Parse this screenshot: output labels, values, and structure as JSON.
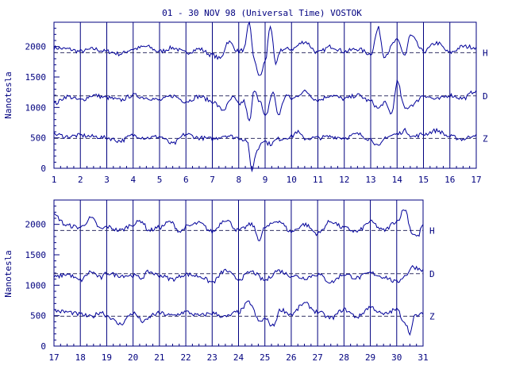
{
  "colors": {
    "ink": "#00007f",
    "trace": "#000099",
    "background": "#ffffff"
  },
  "chart_data": [
    {
      "type": "line",
      "title": "01 - 30 NOV 98 (Universal Time) VOSTOK",
      "ylabel": "Nanotesla",
      "xlim": [
        1,
        17
      ],
      "ylim": [
        0,
        2400
      ],
      "x_ticks": [
        "1",
        "2",
        "3",
        "4",
        "5",
        "6",
        "7",
        "8",
        "9",
        "10",
        "11",
        "12",
        "13",
        "14",
        "15",
        "16",
        "17"
      ],
      "y_ticks": [
        "0",
        "500",
        "1000",
        "1500",
        "2000"
      ],
      "grid": "vertical lines at each day",
      "baselines": [
        1900,
        1190,
        490
      ],
      "series": [
        {
          "name": "H",
          "points": [
            [
              1,
              1980
            ],
            [
              1.5,
              1960
            ],
            [
              2,
              1920
            ],
            [
              2.5,
              1960
            ],
            [
              3,
              1920
            ],
            [
              3.5,
              1880
            ],
            [
              4,
              1960
            ],
            [
              4.5,
              2000
            ],
            [
              5,
              1920
            ],
            [
              5.5,
              1980
            ],
            [
              6,
              1900
            ],
            [
              6.5,
              1960
            ],
            [
              7,
              1860
            ],
            [
              7.3,
              1800
            ],
            [
              7.6,
              2080
            ],
            [
              8,
              1920
            ],
            [
              8.2,
              1950
            ],
            [
              8.4,
              2380
            ],
            [
              8.6,
              1750
            ],
            [
              8.8,
              1500
            ],
            [
              9,
              1750
            ],
            [
              9.2,
              2350
            ],
            [
              9.4,
              1700
            ],
            [
              9.6,
              1950
            ],
            [
              10,
              1960
            ],
            [
              10.5,
              2080
            ],
            [
              11,
              1900
            ],
            [
              11.5,
              2000
            ],
            [
              12,
              1920
            ],
            [
              12.5,
              1960
            ],
            [
              13,
              1880
            ],
            [
              13.3,
              2300
            ],
            [
              13.5,
              1850
            ],
            [
              14,
              2100
            ],
            [
              14.3,
              1860
            ],
            [
              14.5,
              2180
            ],
            [
              15,
              1920
            ],
            [
              15.5,
              2060
            ],
            [
              16,
              1900
            ],
            [
              16.5,
              2000
            ],
            [
              17,
              1990
            ]
          ]
        },
        {
          "name": "D",
          "points": [
            [
              1,
              1060
            ],
            [
              1.5,
              1180
            ],
            [
              2,
              1120
            ],
            [
              2.5,
              1200
            ],
            [
              3,
              1160
            ],
            [
              3.5,
              1120
            ],
            [
              4,
              1200
            ],
            [
              4.5,
              1160
            ],
            [
              5,
              1120
            ],
            [
              5.5,
              1190
            ],
            [
              6,
              1100
            ],
            [
              6.5,
              1180
            ],
            [
              7,
              1100
            ],
            [
              7.4,
              960
            ],
            [
              7.8,
              1160
            ],
            [
              8,
              1050
            ],
            [
              8.2,
              1100
            ],
            [
              8.4,
              760
            ],
            [
              8.6,
              1300
            ],
            [
              8.8,
              1100
            ],
            [
              9,
              840
            ],
            [
              9.3,
              1250
            ],
            [
              9.5,
              880
            ],
            [
              9.8,
              1200
            ],
            [
              10,
              1140
            ],
            [
              10.5,
              1260
            ],
            [
              11,
              1120
            ],
            [
              11.5,
              1200
            ],
            [
              12,
              1140
            ],
            [
              12.5,
              1200
            ],
            [
              13,
              1100
            ],
            [
              13.3,
              980
            ],
            [
              13.5,
              1080
            ],
            [
              13.8,
              900
            ],
            [
              14,
              1420
            ],
            [
              14.3,
              980
            ],
            [
              14.6,
              1050
            ],
            [
              15,
              1200
            ],
            [
              15.5,
              1130
            ],
            [
              16,
              1200
            ],
            [
              16.5,
              1150
            ],
            [
              17,
              1280
            ]
          ]
        },
        {
          "name": "Z",
          "points": [
            [
              1,
              560
            ],
            [
              1.5,
              520
            ],
            [
              2,
              540
            ],
            [
              2.5,
              520
            ],
            [
              3,
              500
            ],
            [
              3.5,
              450
            ],
            [
              4,
              540
            ],
            [
              4.5,
              500
            ],
            [
              5,
              520
            ],
            [
              5.5,
              400
            ],
            [
              6,
              560
            ],
            [
              6.5,
              500
            ],
            [
              7,
              480
            ],
            [
              7.5,
              540
            ],
            [
              8,
              500
            ],
            [
              8.3,
              460
            ],
            [
              8.5,
              -20
            ],
            [
              8.7,
              300
            ],
            [
              8.9,
              460
            ],
            [
              9.2,
              400
            ],
            [
              9.5,
              480
            ],
            [
              10,
              520
            ],
            [
              10.2,
              600
            ],
            [
              10.5,
              490
            ],
            [
              11,
              500
            ],
            [
              11.5,
              520
            ],
            [
              12,
              500
            ],
            [
              12.5,
              560
            ],
            [
              13,
              480
            ],
            [
              13.3,
              350
            ],
            [
              13.6,
              520
            ],
            [
              14,
              560
            ],
            [
              14.3,
              620
            ],
            [
              14.6,
              520
            ],
            [
              15,
              560
            ],
            [
              15.5,
              620
            ],
            [
              16,
              520
            ],
            [
              16.5,
              480
            ],
            [
              17,
              560
            ]
          ]
        }
      ],
      "labels": [
        "H",
        "D",
        "Z"
      ]
    },
    {
      "type": "line",
      "ylabel": "Nanotesla",
      "xlim": [
        17,
        31
      ],
      "ylim": [
        0,
        2400
      ],
      "x_ticks": [
        "17",
        "18",
        "19",
        "20",
        "21",
        "22",
        "23",
        "24",
        "25",
        "26",
        "27",
        "28",
        "29",
        "30",
        "31"
      ],
      "y_ticks": [
        "0",
        "500",
        "1000",
        "1500",
        "2000"
      ],
      "grid": "vertical lines at each day",
      "baselines": [
        1900,
        1190,
        490
      ],
      "series": [
        {
          "name": "H",
          "points": [
            [
              17,
              2150
            ],
            [
              17.5,
              1980
            ],
            [
              18,
              1950
            ],
            [
              18.4,
              2100
            ],
            [
              18.8,
              1920
            ],
            [
              19,
              1960
            ],
            [
              19.5,
              1900
            ],
            [
              20,
              2000
            ],
            [
              20.3,
              2060
            ],
            [
              20.6,
              1900
            ],
            [
              21,
              1950
            ],
            [
              21.4,
              2040
            ],
            [
              21.8,
              1880
            ],
            [
              22,
              1960
            ],
            [
              22.5,
              2020
            ],
            [
              23,
              1880
            ],
            [
              23.5,
              2080
            ],
            [
              24,
              1900
            ],
            [
              24.5,
              2000
            ],
            [
              24.8,
              1750
            ],
            [
              25,
              1950
            ],
            [
              25.5,
              2060
            ],
            [
              26,
              1880
            ],
            [
              26.5,
              2000
            ],
            [
              27,
              1850
            ],
            [
              27.5,
              2050
            ],
            [
              28,
              1940
            ],
            [
              28.5,
              1880
            ],
            [
              29,
              2040
            ],
            [
              29.5,
              1900
            ],
            [
              30,
              2050
            ],
            [
              30.3,
              2250
            ],
            [
              30.6,
              1850
            ],
            [
              30.8,
              1800
            ],
            [
              31,
              2000
            ]
          ]
        },
        {
          "name": "D",
          "points": [
            [
              17,
              1130
            ],
            [
              17.5,
              1180
            ],
            [
              18,
              1080
            ],
            [
              18.4,
              1220
            ],
            [
              18.8,
              1120
            ],
            [
              19,
              1200
            ],
            [
              19.5,
              1160
            ],
            [
              20,
              1160
            ],
            [
              20.3,
              1120
            ],
            [
              20.6,
              1220
            ],
            [
              21,
              1160
            ],
            [
              21.5,
              1100
            ],
            [
              22,
              1180
            ],
            [
              22.5,
              1150
            ],
            [
              23,
              1050
            ],
            [
              23.5,
              1240
            ],
            [
              24,
              1100
            ],
            [
              24.5,
              1220
            ],
            [
              25,
              1080
            ],
            [
              25.5,
              1240
            ],
            [
              26,
              1160
            ],
            [
              26.5,
              1120
            ],
            [
              27,
              1180
            ],
            [
              27.5,
              1050
            ],
            [
              28,
              1180
            ],
            [
              28.5,
              1120
            ],
            [
              29,
              1200
            ],
            [
              29.5,
              1140
            ],
            [
              30,
              1050
            ],
            [
              30.3,
              1150
            ],
            [
              30.6,
              1300
            ],
            [
              31,
              1260
            ]
          ]
        },
        {
          "name": "Z",
          "points": [
            [
              17,
              580
            ],
            [
              17.5,
              560
            ],
            [
              18,
              520
            ],
            [
              18.4,
              480
            ],
            [
              18.8,
              560
            ],
            [
              19,
              500
            ],
            [
              19.5,
              360
            ],
            [
              20,
              540
            ],
            [
              20.4,
              400
            ],
            [
              20.8,
              520
            ],
            [
              21,
              540
            ],
            [
              21.5,
              500
            ],
            [
              22,
              560
            ],
            [
              22.5,
              500
            ],
            [
              23,
              540
            ],
            [
              23.5,
              480
            ],
            [
              24,
              560
            ],
            [
              24.4,
              720
            ],
            [
              24.8,
              400
            ],
            [
              25,
              450
            ],
            [
              25.3,
              330
            ],
            [
              25.6,
              600
            ],
            [
              26,
              520
            ],
            [
              26.5,
              700
            ],
            [
              27,
              560
            ],
            [
              27.5,
              460
            ],
            [
              28,
              600
            ],
            [
              28.5,
              480
            ],
            [
              29,
              640
            ],
            [
              29.5,
              520
            ],
            [
              30,
              600
            ],
            [
              30.3,
              400
            ],
            [
              30.5,
              220
            ],
            [
              30.7,
              500
            ],
            [
              31,
              520
            ]
          ]
        }
      ],
      "labels": [
        "H",
        "D",
        "Z"
      ]
    }
  ]
}
